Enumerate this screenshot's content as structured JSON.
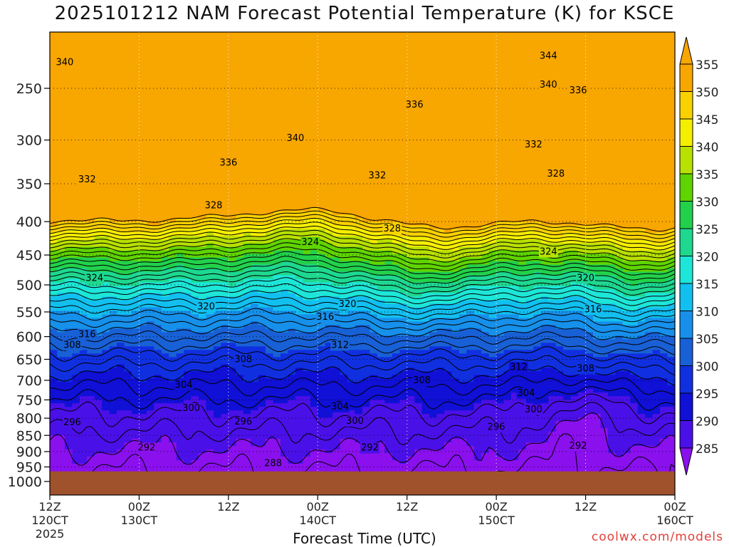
{
  "chart_data": {
    "type": "heatmap",
    "title": "2025101212 NAM Forecast Potential Temperature (K) for KSCE",
    "xlabel": "Forecast Time (UTC)",
    "ylabel": "",
    "x_ticks": [
      {
        "value": 0,
        "hour": "12Z",
        "date": "120CT",
        "year": "2025"
      },
      {
        "value": 12,
        "hour": "00Z",
        "date": "130CT",
        "year": ""
      },
      {
        "value": 24,
        "hour": "12Z",
        "date": "",
        "year": ""
      },
      {
        "value": 36,
        "hour": "00Z",
        "date": "140CT",
        "year": ""
      },
      {
        "value": 48,
        "hour": "12Z",
        "date": "",
        "year": ""
      },
      {
        "value": 60,
        "hour": "00Z",
        "date": "150CT",
        "year": ""
      },
      {
        "value": 72,
        "hour": "12Z",
        "date": "",
        "year": ""
      },
      {
        "value": 84,
        "hour": "00Z",
        "date": "160CT",
        "year": ""
      }
    ],
    "xlim": [
      0,
      84
    ],
    "y_ticks": [
      "250",
      "300",
      "350",
      "400",
      "450",
      "500",
      "550",
      "600",
      "650",
      "700",
      "750",
      "800",
      "850",
      "900",
      "950",
      "1000"
    ],
    "y_values": [
      250,
      300,
      350,
      400,
      450,
      500,
      550,
      600,
      650,
      700,
      750,
      800,
      850,
      900,
      950,
      1000
    ],
    "ylim": [
      1000,
      200
    ],
    "y_scale": "log",
    "grid": true,
    "colorbar": {
      "labels": [
        "355",
        "350",
        "345",
        "340",
        "335",
        "330",
        "325",
        "320",
        "315",
        "310",
        "305",
        "300",
        "295",
        "290",
        "285"
      ],
      "levels": [
        355,
        350,
        345,
        340,
        335,
        330,
        325,
        320,
        315,
        310,
        305,
        300,
        295,
        290,
        285
      ],
      "colors": [
        "#f8a600",
        "#fad100",
        "#f6ee00",
        "#b8e000",
        "#5fd400",
        "#22d14b",
        "#1ed890",
        "#1de6d8",
        "#12c0f0",
        "#1690ea",
        "#1860d6",
        "#1030e0",
        "#1010d6",
        "#4a10e8",
        "#8a10ee"
      ]
    },
    "ground_color": "#a0522d",
    "ground_pressure": 965,
    "contour_labels": [
      {
        "text": "340",
        "t": 2,
        "p": 228
      },
      {
        "text": "344",
        "t": 67,
        "p": 223
      },
      {
        "text": "340",
        "t": 67,
        "p": 247
      },
      {
        "text": "336",
        "t": 71,
        "p": 252
      },
      {
        "text": "336",
        "t": 49,
        "p": 265
      },
      {
        "text": "340",
        "t": 33,
        "p": 298
      },
      {
        "text": "332",
        "t": 65,
        "p": 305
      },
      {
        "text": "336",
        "t": 24,
        "p": 325
      },
      {
        "text": "332",
        "t": 44,
        "p": 340
      },
      {
        "text": "332",
        "t": 5,
        "p": 345
      },
      {
        "text": "328",
        "t": 68,
        "p": 338
      },
      {
        "text": "328",
        "t": 22,
        "p": 378
      },
      {
        "text": "328",
        "t": 46,
        "p": 410
      },
      {
        "text": "324",
        "t": 35,
        "p": 430
      },
      {
        "text": "324",
        "t": 67,
        "p": 445
      },
      {
        "text": "324",
        "t": 6,
        "p": 488
      },
      {
        "text": "320",
        "t": 72,
        "p": 488
      },
      {
        "text": "320",
        "t": 21,
        "p": 540
      },
      {
        "text": "320",
        "t": 40,
        "p": 535
      },
      {
        "text": "316",
        "t": 37,
        "p": 560
      },
      {
        "text": "316",
        "t": 73,
        "p": 545
      },
      {
        "text": "316",
        "t": 5,
        "p": 595
      },
      {
        "text": "308",
        "t": 3,
        "p": 618
      },
      {
        "text": "312",
        "t": 39,
        "p": 618
      },
      {
        "text": "308",
        "t": 26,
        "p": 650
      },
      {
        "text": "312",
        "t": 63,
        "p": 668
      },
      {
        "text": "308",
        "t": 72,
        "p": 672
      },
      {
        "text": "308",
        "t": 50,
        "p": 700
      },
      {
        "text": "304",
        "t": 18,
        "p": 712
      },
      {
        "text": "304",
        "t": 64,
        "p": 732
      },
      {
        "text": "304",
        "t": 39,
        "p": 768
      },
      {
        "text": "300",
        "t": 19,
        "p": 772
      },
      {
        "text": "300",
        "t": 65,
        "p": 776
      },
      {
        "text": "300",
        "t": 41,
        "p": 808
      },
      {
        "text": "296",
        "t": 3,
        "p": 812
      },
      {
        "text": "296",
        "t": 26,
        "p": 810
      },
      {
        "text": "296",
        "t": 60,
        "p": 825
      },
      {
        "text": "292",
        "t": 13,
        "p": 888
      },
      {
        "text": "292",
        "t": 43,
        "p": 888
      },
      {
        "text": "292",
        "t": 71,
        "p": 882
      },
      {
        "text": "288",
        "t": 30,
        "p": 938
      }
    ]
  },
  "credit": "coolwx.com/models"
}
